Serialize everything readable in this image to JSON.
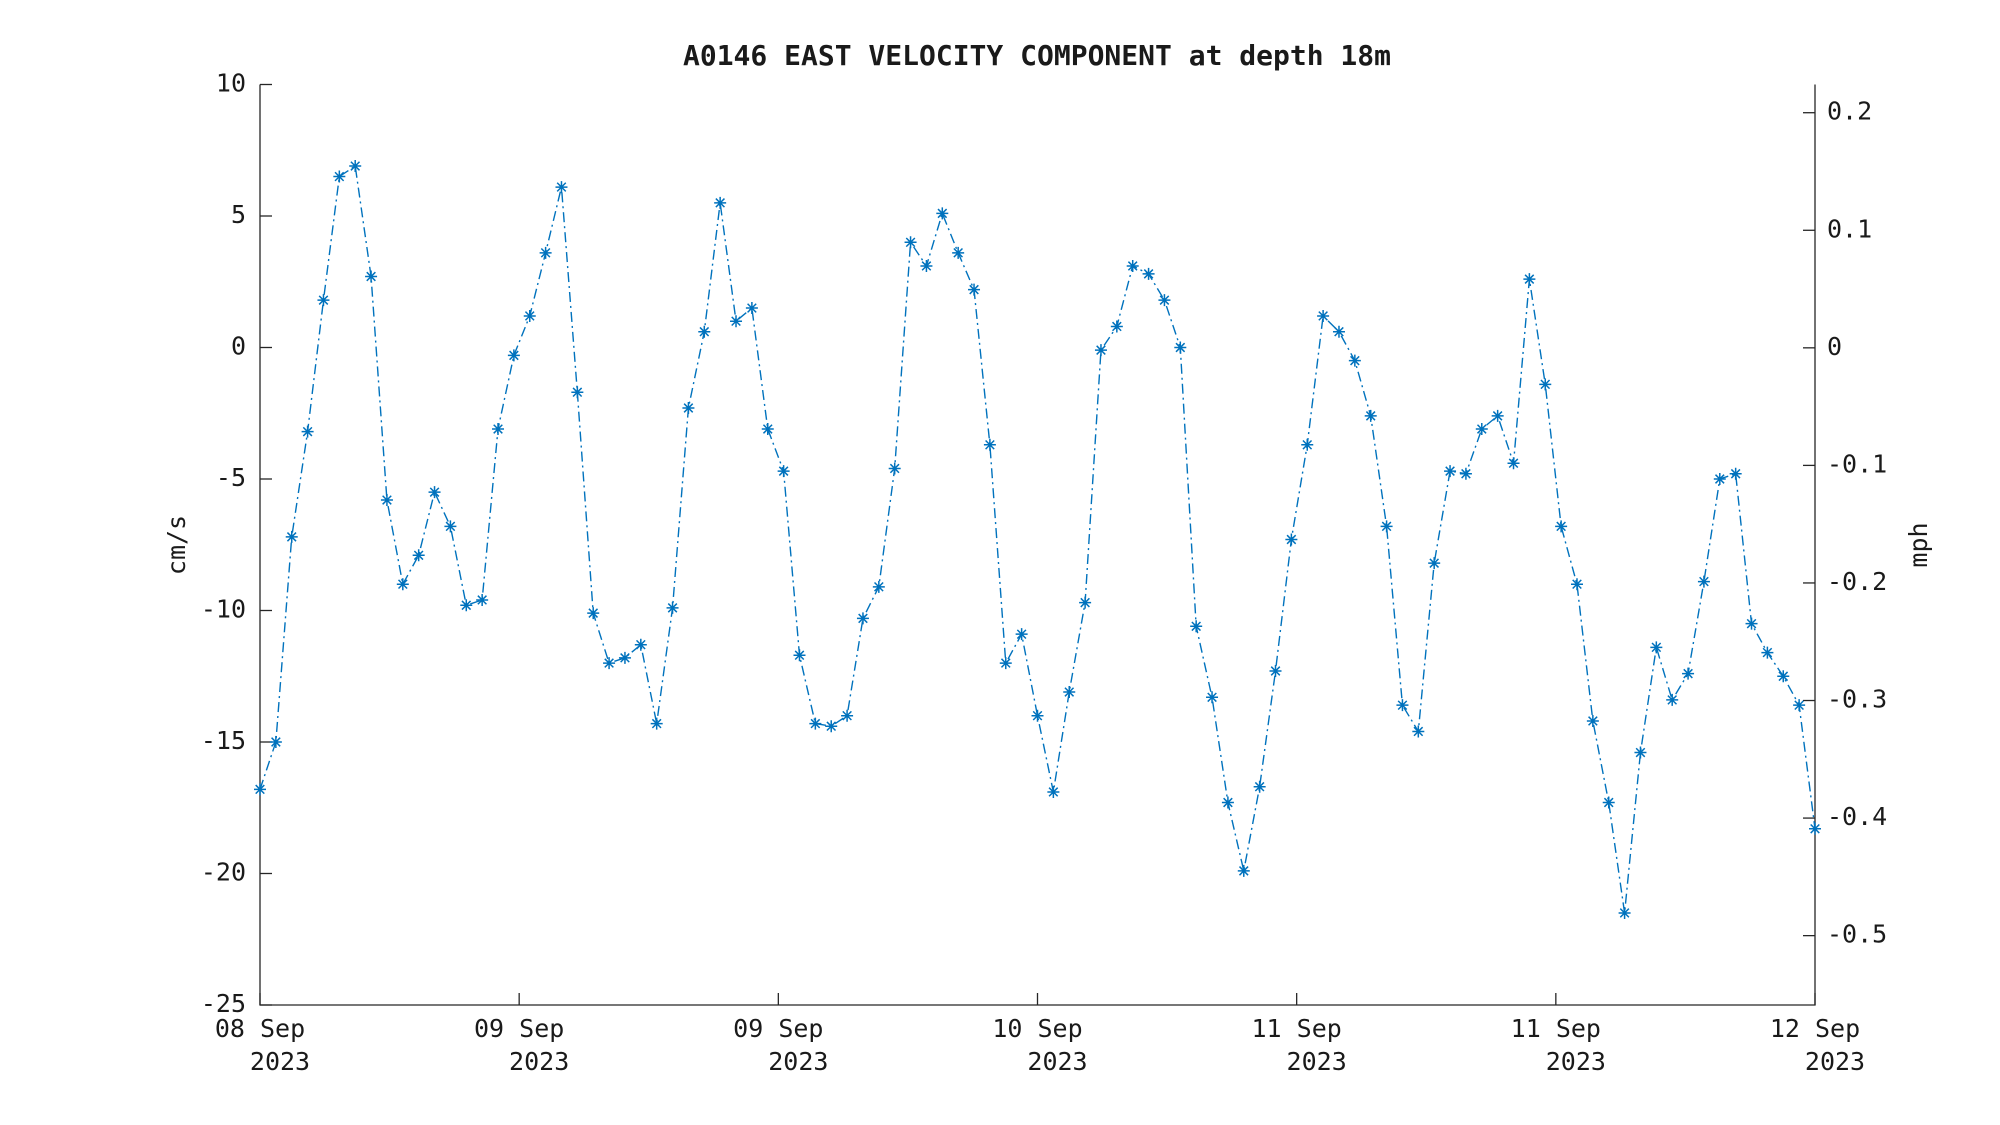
{
  "chart_data": {
    "type": "line",
    "title": "A0146 EAST VELOCITY COMPONENT at depth 18m",
    "ylabel": "cm/s",
    "y2label": "mph",
    "xticks": [
      [
        "08 Sep",
        "2023"
      ],
      [
        "09 Sep",
        "2023"
      ],
      [
        "09 Sep",
        "2023"
      ],
      [
        "10 Sep",
        "2023"
      ],
      [
        "11 Sep",
        "2023"
      ],
      [
        "11 Sep",
        "2023"
      ],
      [
        "12 Sep",
        "2023"
      ]
    ],
    "ylim": [
      -25,
      10
    ],
    "yticks": [
      -25,
      -20,
      -15,
      -10,
      -5,
      0,
      5,
      10
    ],
    "y2lim": [
      -0.559,
      0.224
    ],
    "y2ticks": [
      -0.5,
      -0.4,
      -0.3,
      -0.2,
      -0.1,
      0,
      0.1,
      0.2
    ],
    "series": [
      {
        "color": "#0072bd",
        "values": [
          -16.8,
          -15.0,
          -7.2,
          -3.2,
          1.8,
          6.5,
          6.9,
          2.7,
          -5.8,
          -9.0,
          -7.9,
          -5.5,
          -6.8,
          -9.8,
          -9.6,
          -3.1,
          -0.3,
          1.2,
          3.6,
          6.1,
          -1.7,
          -10.1,
          -12.0,
          -11.8,
          -11.3,
          -14.3,
          -9.9,
          -2.3,
          0.6,
          5.5,
          1.0,
          1.5,
          -3.1,
          -4.7,
          -11.7,
          -14.3,
          -14.4,
          -14.0,
          -10.3,
          -9.1,
          -4.6,
          4.0,
          3.1,
          5.1,
          3.6,
          2.2,
          -3.7,
          -12.0,
          -10.9,
          -14.0,
          -16.9,
          -13.1,
          -9.7,
          -0.1,
          0.8,
          3.1,
          2.8,
          1.8,
          0.0,
          -10.6,
          -13.3,
          -17.3,
          -19.9,
          -16.7,
          -12.3,
          -7.3,
          -3.7,
          1.2,
          0.6,
          -0.5,
          -2.6,
          -6.8,
          -13.6,
          -14.6,
          -8.2,
          -4.7,
          -4.8,
          -3.1,
          -2.6,
          -4.4,
          2.6,
          -1.4,
          -6.8,
          -9.0,
          -14.2,
          -17.3,
          -21.5,
          -15.4,
          -11.4,
          -13.4,
          -12.4,
          -8.9,
          -5.0,
          -4.8,
          -10.5,
          -11.6,
          -12.5,
          -13.6,
          -18.3
        ]
      }
    ]
  }
}
